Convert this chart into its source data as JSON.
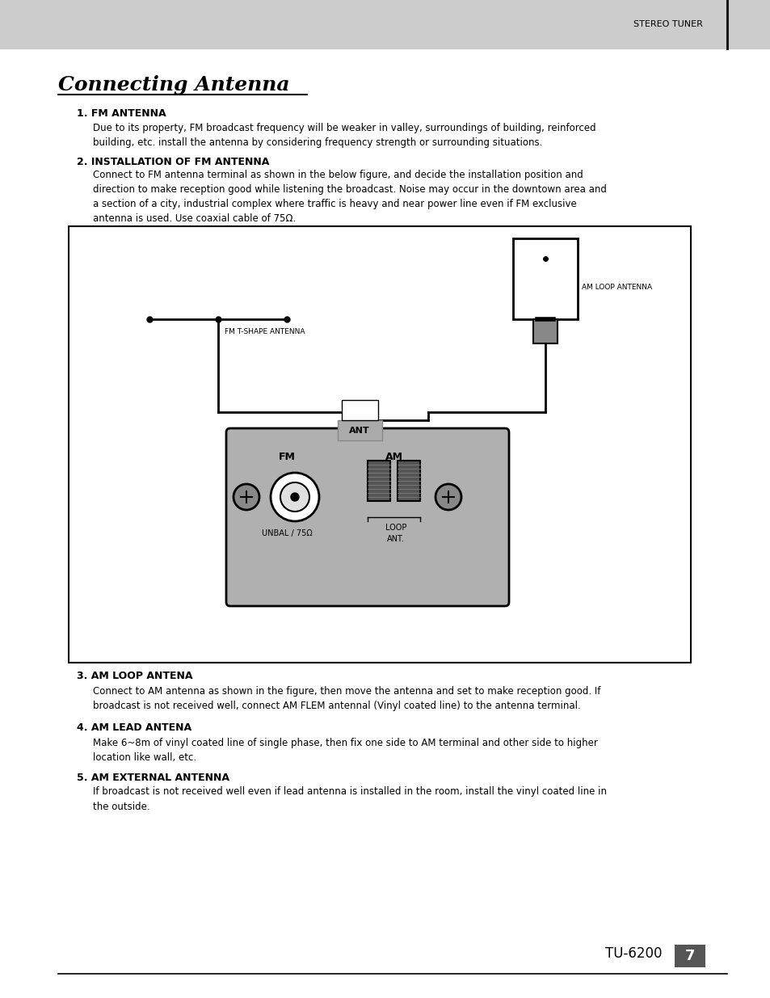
{
  "page_bg": "#ffffff",
  "header_bg": "#cccccc",
  "header_text": "STEREO TUNER",
  "title": "Connecting Antenna",
  "section1_heading": "1. FM ANTENNA",
  "section1_body": "Due to its property, FM broadcast frequency will be weaker in valley, surroundings of building, reinforced\nbuilding, etc. install the antenna by considering frequency strength or surrounding situations.",
  "section2_heading": "2. INSTALLATION OF FM ANTENNA",
  "section2_body": "Connect to FM antenna terminal as shown in the below figure, and decide the installation position and\ndirection to make reception good while listening the broadcast. Noise may occur in the downtown area and\na section of a city, industrial complex where traffic is heavy and near power line even if FM exclusive\nantenna is used. Use coaxial cable of 75Ω.",
  "section3_heading": "3. AM LOOP ANTENA",
  "section3_body": "Connect to AM antenna as shown in the figure, then move the antenna and set to make reception good. If\nbroadcast is not received well, connect AM FLEM antennal (Vinyl coated line) to the antenna terminal.",
  "section4_heading": "4. AM LEAD ANTENA",
  "section4_body": "Make 6~8m of vinyl coated line of single phase, then fix one side to AM terminal and other side to higher\nlocation like wall, etc.",
  "section5_heading": "5. AM EXTERNAL ANTENNA",
  "section5_body": "If broadcast is not received well even if lead antenna is installed in the room, install the vinyl coated line in\nthe outside.",
  "footer_model": "TU-6200",
  "footer_page": "7",
  "diagram_bg": "#ffffff",
  "diagram_border": "#000000",
  "panel_bg": "#b0b0b0",
  "fm_label": "FM T-SHAPE ANTENNA",
  "am_label": "AM LOOP ANTENNA",
  "ant_label": "ANT",
  "fm_panel_label": "FM",
  "am_panel_label": "AM",
  "unbal_label": "UNBAL / 75Ω",
  "loop_label": "LOOP\nANT."
}
